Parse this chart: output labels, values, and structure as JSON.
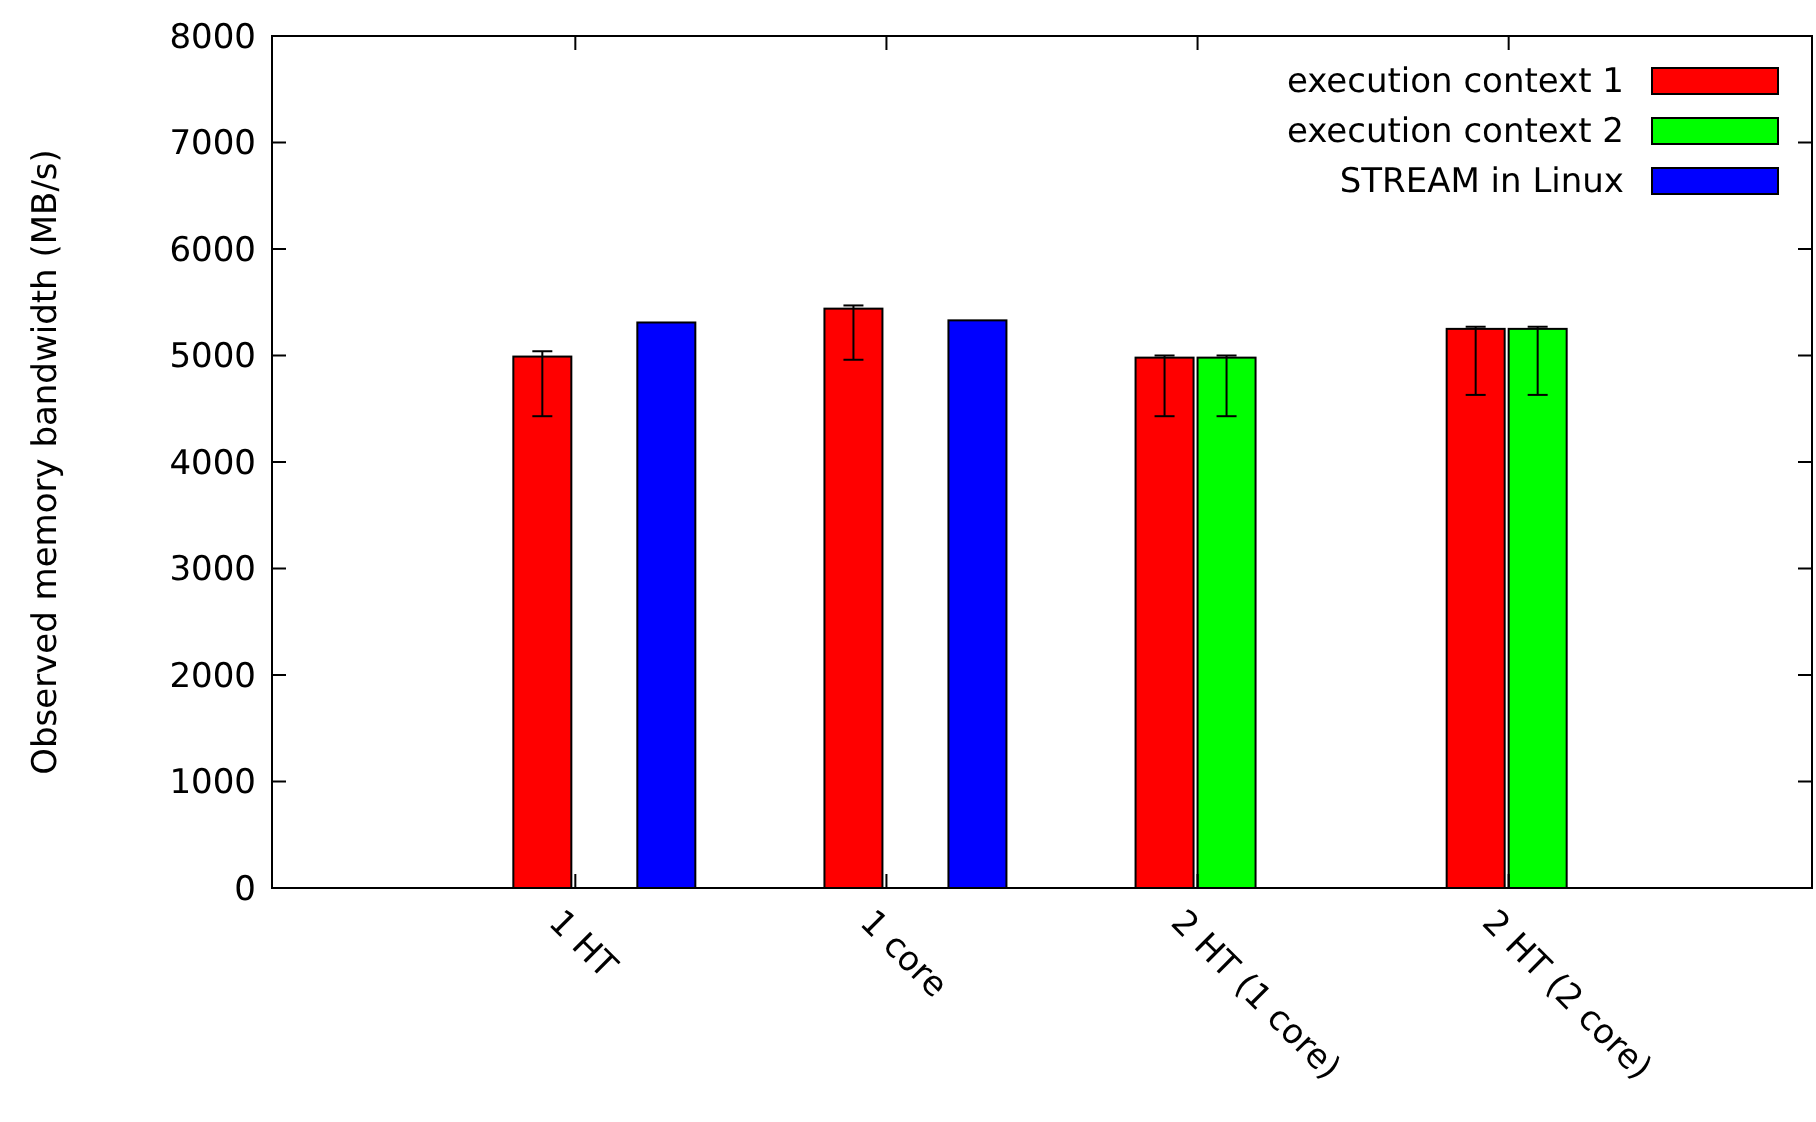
{
  "chart_data": {
    "type": "bar",
    "ylabel": "Observed memory bandwidth (MB/s)",
    "categories": [
      "1 HT",
      "1 core",
      "2 HT (1 core)",
      "2 HT (2 core)"
    ],
    "series": [
      {
        "name": "execution context 1",
        "color": "#ff0000",
        "values": [
          4990,
          5440,
          4980,
          5250
        ],
        "errors": [
          [
            4430,
            5040
          ],
          [
            4960,
            5470
          ],
          [
            4430,
            5000
          ],
          [
            4630,
            5270
          ]
        ]
      },
      {
        "name": "execution context 2",
        "color": "#00ff00",
        "values": [
          0,
          0,
          4980,
          5250
        ],
        "errors": [
          null,
          null,
          [
            4430,
            5000
          ],
          [
            4630,
            5270
          ]
        ]
      },
      {
        "name": "STREAM in Linux",
        "color": "#0000ff",
        "values": [
          5310,
          5330,
          null,
          null
        ]
      }
    ],
    "ylim": [
      0,
      8000
    ],
    "yticks": [
      0,
      1000,
      2000,
      3000,
      4000,
      5000,
      6000,
      7000,
      8000
    ],
    "legend": "top right"
  }
}
